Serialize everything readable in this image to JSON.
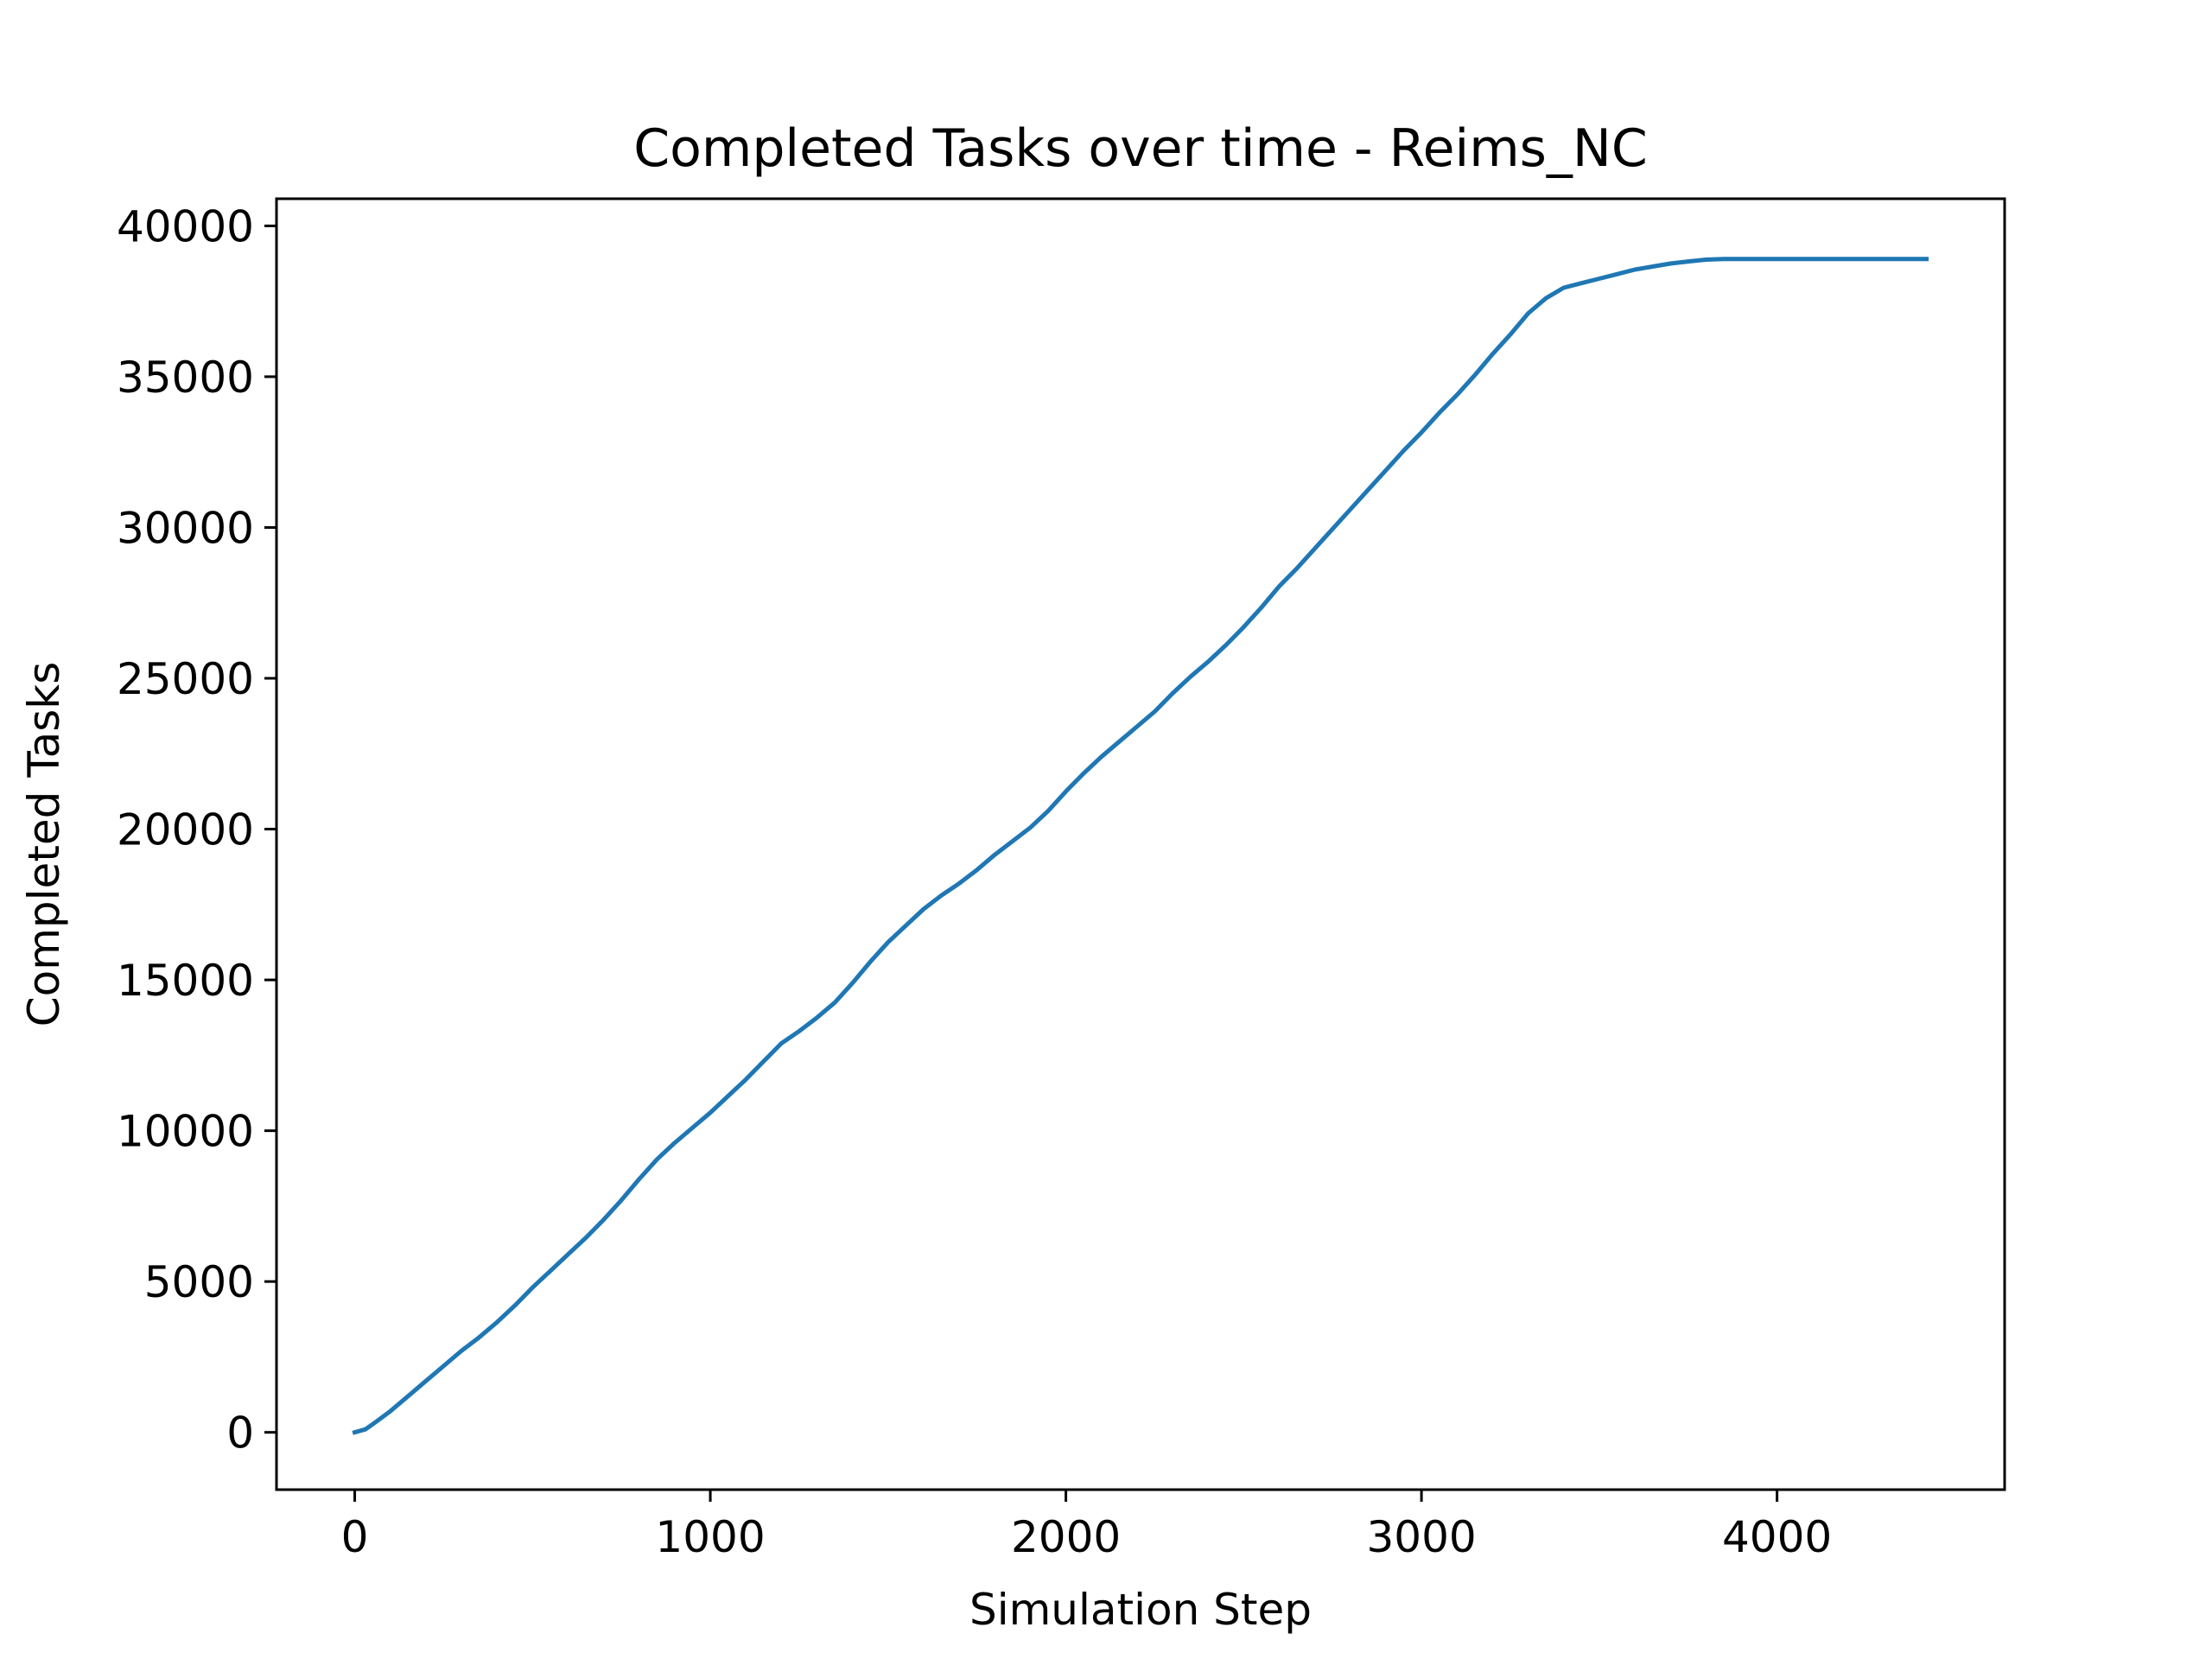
{
  "chart_data": {
    "type": "line",
    "title": "Completed Tasks over time - Reims_NC",
    "xlabel": "Simulation Step",
    "ylabel": "Completed Tasks",
    "xlim": [
      -220,
      4640
    ],
    "ylim": [
      -1900,
      40900
    ],
    "x_ticks": [
      0,
      1000,
      2000,
      3000,
      4000
    ],
    "x_tick_labels": [
      "0",
      "1000",
      "2000",
      "3000",
      "4000"
    ],
    "y_ticks": [
      0,
      5000,
      10000,
      15000,
      20000,
      25000,
      30000,
      35000,
      40000
    ],
    "y_tick_labels": [
      "0",
      "5000",
      "10000",
      "15000",
      "20000",
      "25000",
      "30000",
      "35000",
      "40000"
    ],
    "grid": false,
    "series_color": "#1f77b4",
    "series": [
      {
        "x": [
          0,
          30,
          60,
          100,
          150,
          200,
          250,
          300,
          350,
          400,
          450,
          500,
          550,
          600,
          650,
          700,
          750,
          800,
          850,
          900,
          950,
          1000,
          1050,
          1100,
          1150,
          1200,
          1250,
          1300,
          1350,
          1400,
          1450,
          1500,
          1550,
          1600,
          1650,
          1700,
          1750,
          1800,
          1850,
          1900,
          1950,
          2000,
          2050,
          2100,
          2150,
          2200,
          2250,
          2300,
          2350,
          2400,
          2450,
          2500,
          2550,
          2600,
          2650,
          2700,
          2750,
          2800,
          2850,
          2900,
          2950,
          3000,
          3050,
          3100,
          3150,
          3200,
          3250,
          3300,
          3350,
          3400,
          3450,
          3500,
          3550,
          3600,
          3650,
          3700,
          3750,
          3800,
          3850,
          3900,
          3950,
          4000,
          4050,
          4100,
          4150,
          4200,
          4250,
          4300,
          4350,
          4420
        ],
        "y": [
          0,
          100,
          350,
          700,
          1200,
          1700,
          2200,
          2700,
          3150,
          3650,
          4200,
          4800,
          5350,
          5900,
          6450,
          7050,
          7700,
          8400,
          9050,
          9600,
          10100,
          10600,
          11150,
          11700,
          12300,
          12900,
          13300,
          13750,
          14250,
          14900,
          15600,
          16250,
          16800,
          17350,
          17800,
          18200,
          18650,
          19150,
          19600,
          20050,
          20600,
          21250,
          21850,
          22400,
          22900,
          23400,
          23900,
          24500,
          25050,
          25550,
          26100,
          26700,
          27350,
          28050,
          28650,
          29300,
          29950,
          30600,
          31250,
          31900,
          32550,
          33150,
          33800,
          34400,
          35050,
          35750,
          36400,
          37100,
          37600,
          37950,
          38100,
          38250,
          38400,
          38550,
          38650,
          38750,
          38820,
          38880,
          38900,
          38900,
          38900,
          38900,
          38900,
          38900,
          38900,
          38900,
          38900,
          38900,
          38900,
          38900
        ]
      }
    ]
  }
}
